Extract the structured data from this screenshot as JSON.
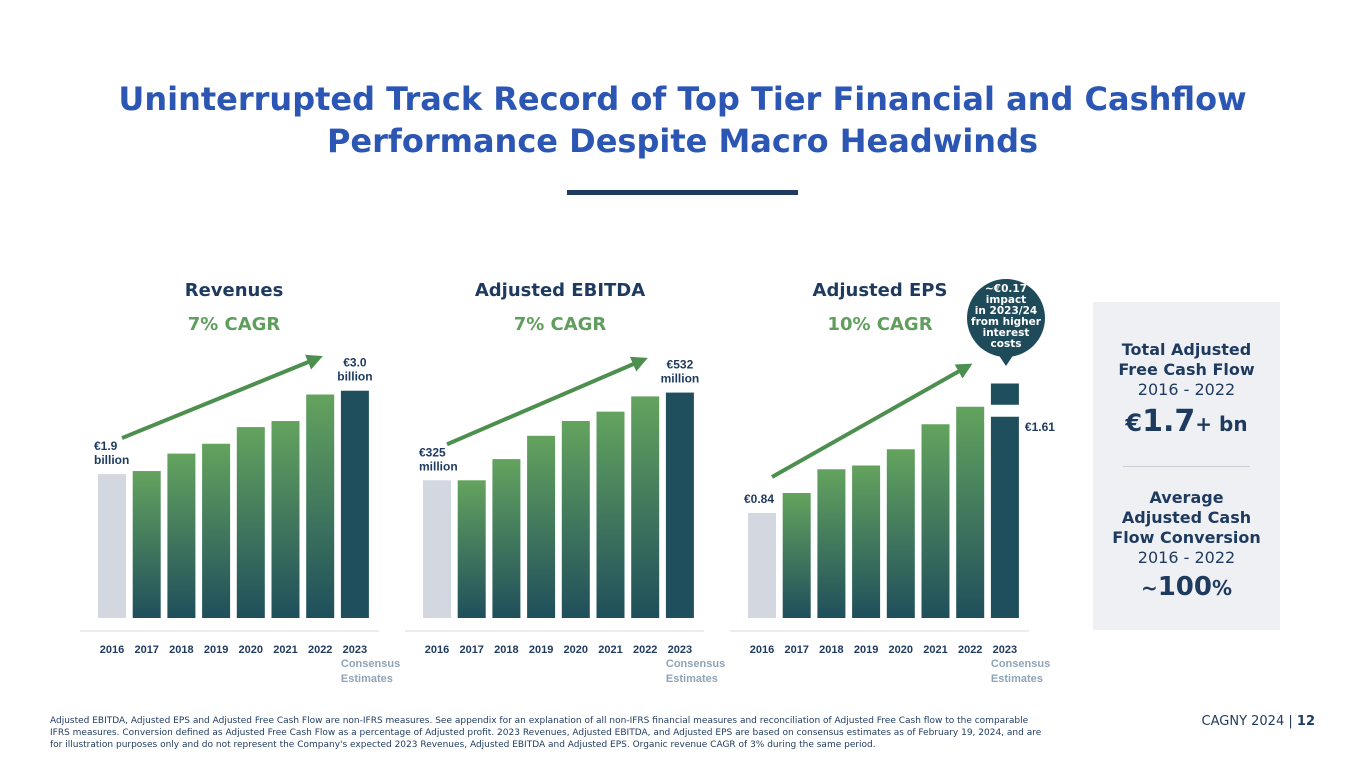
{
  "title": {
    "line1": "Uninterrupted Track Record of Top Tier Financial and Cashflow",
    "line2": "Performance Despite Macro Headwinds"
  },
  "colors": {
    "title": "#2b56b4",
    "navy": "#1e3a5f",
    "green": "#5f9e5c",
    "gray_bar": "#d3d8e0"
  },
  "chart_data": [
    {
      "type": "bar",
      "title": "Revenues",
      "subtitle": "7% CAGR",
      "categories": [
        "2016",
        "2017",
        "2018",
        "2019",
        "2020",
        "2021",
        "2022",
        "2023"
      ],
      "values": [
        1.9,
        1.94,
        2.17,
        2.3,
        2.52,
        2.6,
        2.95,
        3.0
      ],
      "unit": "€ billion",
      "ylim": [
        0,
        3.3
      ],
      "start_label": [
        "€1.9",
        "billion"
      ],
      "end_label": [
        "€3.0",
        "billion"
      ],
      "consensus_label": [
        "Consensus",
        "Estimates"
      ]
    },
    {
      "type": "bar",
      "title": "Adjusted EBITDA",
      "subtitle": "7% CAGR",
      "categories": [
        "2016",
        "2017",
        "2018",
        "2019",
        "2020",
        "2021",
        "2022",
        "2023"
      ],
      "values": [
        325,
        325,
        375,
        430,
        465,
        487,
        523,
        532
      ],
      "unit": "€ million",
      "ylim": [
        0,
        590
      ],
      "start_label": [
        "€325",
        "million"
      ],
      "end_label": [
        "€532",
        "million"
      ],
      "consensus_label": [
        "Consensus",
        "Estimates"
      ]
    },
    {
      "type": "bar",
      "title": "Adjusted EPS",
      "subtitle": "10% CAGR",
      "categories": [
        "2016",
        "2017",
        "2018",
        "2019",
        "2020",
        "2021",
        "2022",
        "2023"
      ],
      "values": [
        0.84,
        1.0,
        1.19,
        1.22,
        1.35,
        1.55,
        1.69,
        1.61
      ],
      "impact_value": 0.17,
      "unit": "€",
      "ylim": [
        0,
        2.0
      ],
      "start_label": [
        "€0.84"
      ],
      "end_label": [
        "€1.61"
      ],
      "consensus_label": [
        "Consensus",
        "Estimates"
      ],
      "callout": [
        "~€0.17",
        "impact",
        "in 2023/24",
        "from higher",
        "interest",
        "costs"
      ]
    }
  ],
  "sidebar": {
    "fcf_title_1": "Total Adjusted",
    "fcf_title_2": "Free Cash Flow",
    "fcf_period": "2016 - 2022",
    "fcf_prefix": "€",
    "fcf_value": "1.7",
    "fcf_suffix": "+ bn",
    "conv_title_1": "Average",
    "conv_title_2": "Adjusted Cash",
    "conv_title_3": "Flow Conversion",
    "conv_period": "2016 - 2022",
    "conv_prefix": "~",
    "conv_value": "100",
    "conv_suffix": "%"
  },
  "footnote": {
    "line1": "Adjusted EBITDA, Adjusted EPS and Adjusted Free Cash Flow are non-IFRS measures. See appendix for an explanation of all non-IFRS financial measures and reconciliation of Adjusted Free Cash flow to the comparable",
    "line2": "IFRS measures. Conversion defined as Adjusted Free Cash Flow as a percentage of Adjusted profit. 2023 Revenues, Adjusted EBITDA, and Adjusted EPS are based on consensus estimates as of February 19, 2024, and are",
    "line3": "for illustration purposes only and do not represent the Company's expected 2023 Revenues, Adjusted EBITDA and Adjusted EPS. Organic revenue CAGR of 3% during the same period."
  },
  "footer": {
    "label": "CAGNY 2024",
    "separator": "|",
    "page": "12"
  }
}
